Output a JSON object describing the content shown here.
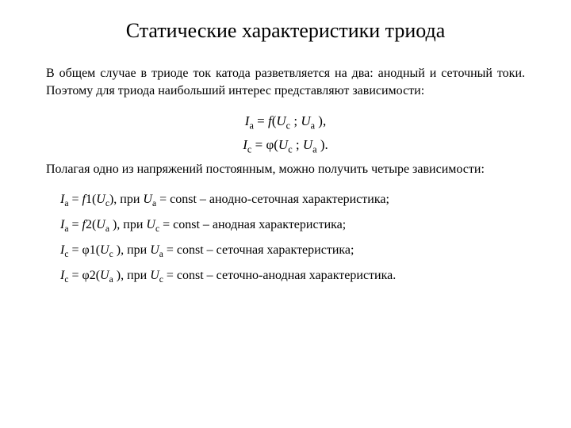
{
  "title": "Статические характеристики триода",
  "intro": "В общем случае в триоде ток катода разветвляется на два: анодный и сеточный токи. Поэтому для триода наибольший интерес представляют зависимости:",
  "equations": {
    "ia": {
      "lhs_sym": "I",
      "lhs_sub": "а",
      "func": "f",
      "arg1_sym": "U",
      "arg1_sub": "с",
      "arg2_sym": "U",
      "arg2_sub": "а",
      "tail": " ),"
    },
    "ic": {
      "lhs_sym": "I",
      "lhs_sub": "с",
      "func": "φ",
      "arg1_sym": "U",
      "arg1_sub": "с",
      "arg2_sym": "U",
      "arg2_sub": "а",
      "tail": " )."
    }
  },
  "second_para": "Полагая одно из напряжений постоянным, можно получить четыре зависимости:",
  "chars": [
    {
      "lhs_sym": "I",
      "lhs_sub": "а",
      "func": "f",
      "func_num": "1",
      "arg_sym": "U",
      "arg_sub": "с",
      "cond_sym": "U",
      "cond_sub": "а",
      "desc": "анодно-сеточная характеристика;"
    },
    {
      "lhs_sym": "I",
      "lhs_sub": "а",
      "func": "f",
      "func_num": "2",
      "arg_sym": "U",
      "arg_sub": "а",
      "cond_sym": "U",
      "cond_sub": "с",
      "desc": "анодная характеристика;"
    },
    {
      "lhs_sym": "I",
      "lhs_sub": "с",
      "func": "φ",
      "func_num": "1",
      "arg_sym": "U",
      "arg_sub": "с",
      "cond_sym": "U",
      "cond_sub": "а",
      "desc": "сеточная характеристика;"
    },
    {
      "lhs_sym": "I",
      "lhs_sub": "с",
      "func": "φ",
      "func_num": "2",
      "arg_sym": "U",
      "arg_sub": "а",
      "cond_sym": "U",
      "cond_sub": "с",
      "desc": "сеточно-анодная характеристика."
    }
  ],
  "labels": {
    "eq": " = ",
    "open": "(",
    "sep": " ; ",
    "close": ")",
    "pri": ", при ",
    "const_eq": " = const – "
  }
}
